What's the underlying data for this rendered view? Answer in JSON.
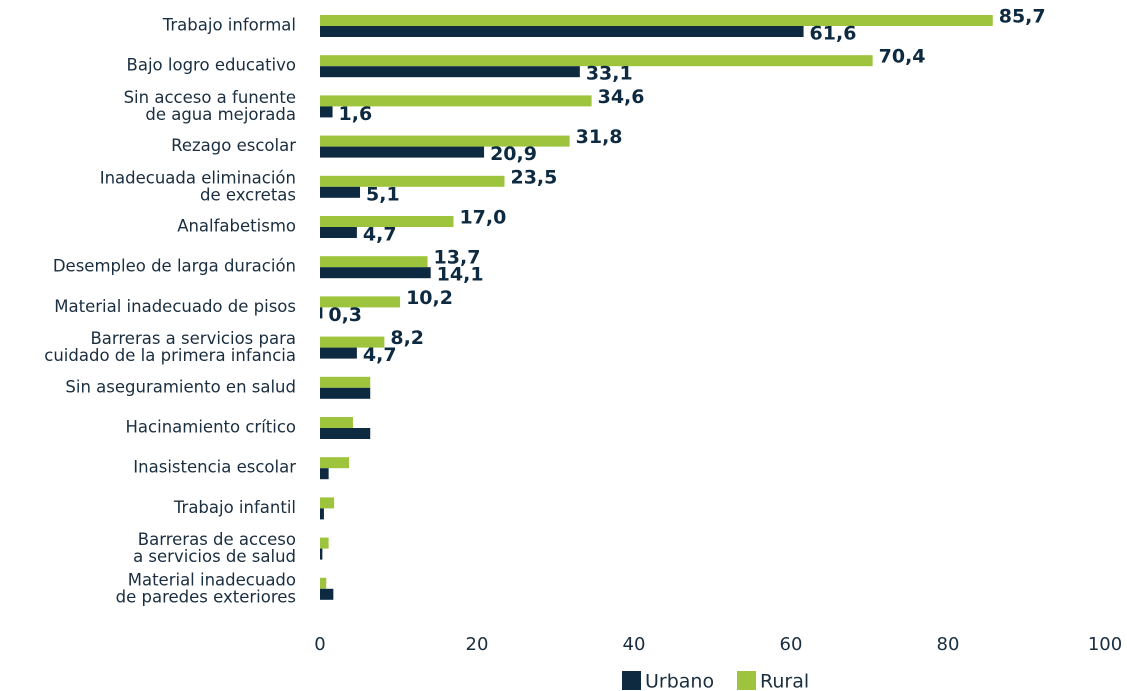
{
  "chart_data": {
    "type": "barh",
    "categories": [
      "Trabajo informal",
      "Bajo logro educativo",
      "Sin acceso a funente\nde agua mejorada",
      "Rezago escolar",
      "Inadecuada eliminación\nde excretas",
      "Analfabetismo",
      "Desempleo de larga duración",
      "Material inadecuado de pisos",
      "Barreras a servicios para\ncuidado de la primera infancia",
      "Sin aseguramiento en salud",
      "Hacinamiento crítico",
      "Inasistencia escolar",
      "Trabajo infantil",
      "Barreras de acceso\na servicios de salud",
      "Material inadecuado\nde paredes exteriores"
    ],
    "series": [
      {
        "name": "Urbano",
        "color": "#0d2a40",
        "values": [
          61.6,
          33.1,
          1.6,
          20.9,
          5.1,
          4.7,
          14.1,
          0.3,
          4.7,
          6.4,
          6.4,
          1.1,
          0.5,
          0.3,
          1.7
        ],
        "value_labels": [
          "61,6",
          "33,1",
          "1,6",
          "20,9",
          "5,1",
          "4,7",
          "14,1",
          "0,3",
          "4,7",
          null,
          null,
          null,
          null,
          null,
          null
        ]
      },
      {
        "name": "Rural",
        "color": "#9dc43c",
        "values": [
          85.7,
          70.4,
          34.6,
          31.8,
          23.5,
          17.0,
          13.7,
          10.2,
          8.2,
          6.4,
          4.2,
          3.7,
          1.8,
          1.1,
          0.8
        ],
        "value_labels": [
          "85,7",
          "70,4",
          "34,6",
          "31,8",
          "23,5",
          "17,0",
          "13,7",
          "10,2",
          "8,2",
          null,
          null,
          null,
          null,
          null,
          null
        ]
      }
    ],
    "xlim": [
      0,
      100
    ],
    "xticks": [
      0,
      20,
      40,
      60,
      80,
      100
    ],
    "grid": false,
    "legend": "bottom"
  }
}
